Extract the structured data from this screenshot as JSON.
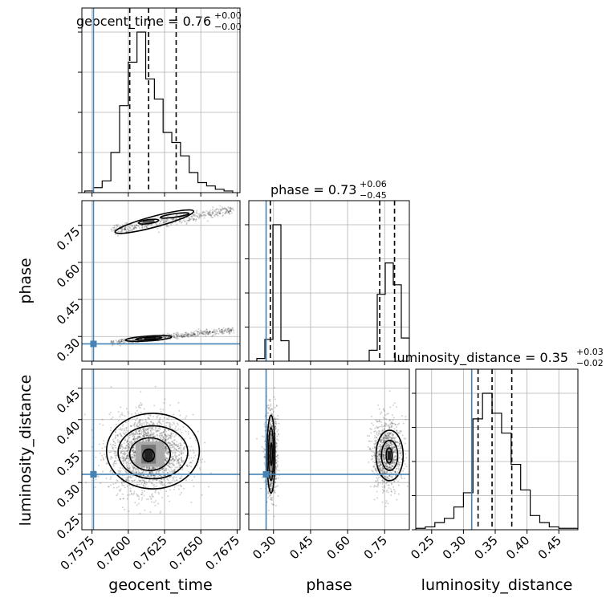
{
  "chart_data": {
    "type": "corner",
    "parameters": [
      {
        "name": "geocent_time",
        "label": "geocent_time",
        "title": "geocent_time = 0.76",
        "title_upper": "+0.00",
        "title_lower": "−0.00",
        "range": [
          0.7568,
          0.7677
        ],
        "ticks": [
          0.7575,
          0.76,
          0.7625,
          0.765,
          0.7675
        ],
        "tick_labels": [
          "0.7575",
          "0.7600",
          "0.7625",
          "0.7650",
          "0.7675"
        ],
        "truth": 0.7576,
        "quantiles": [
          0.7601,
          0.7614,
          0.7633
        ],
        "hist": {
          "edges": [
            0.757,
            0.7576,
            0.7582,
            0.7588,
            0.7594,
            0.76,
            0.7606,
            0.7612,
            0.7618,
            0.7624,
            0.763,
            0.7636,
            0.7642,
            0.7648,
            0.7654,
            0.766,
            0.7666,
            0.7672
          ],
          "counts": [
            1,
            3,
            7,
            24,
            52,
            78,
            96,
            68,
            56,
            36,
            30,
            22,
            12,
            6,
            4,
            2,
            1
          ]
        }
      },
      {
        "name": "phase",
        "label": "phase",
        "title": "phase = 0.73",
        "title_upper": "+0.06",
        "title_lower": "−0.45",
        "range": [
          0.2,
          0.85
        ],
        "ticks": [
          0.3,
          0.45,
          0.6,
          0.75
        ],
        "tick_labels": [
          "0.30",
          "0.45",
          "0.60",
          "0.75"
        ],
        "truth": 0.27,
        "quantiles": [
          0.287,
          0.73,
          0.79
        ],
        "hist": {
          "edges": [
            0.2,
            0.2325,
            0.265,
            0.2975,
            0.33,
            0.3625,
            0.395,
            0.4275,
            0.46,
            0.4925,
            0.525,
            0.5575,
            0.59,
            0.6225,
            0.655,
            0.6875,
            0.72,
            0.7525,
            0.785,
            0.8175,
            0.85
          ],
          "counts": [
            0,
            2,
            16,
            100,
            15,
            0,
            0,
            0,
            0,
            0,
            0,
            0,
            0,
            0,
            0,
            8,
            49,
            72,
            56,
            17
          ]
        }
      },
      {
        "name": "luminosity_distance",
        "label": "luminosity_distance",
        "title": "luminosity_distance = 0.35",
        "title_upper": "+0.03",
        "title_lower": "−0.02",
        "range": [
          0.225,
          0.48
        ],
        "ticks": [
          0.25,
          0.3,
          0.35,
          0.4,
          0.45
        ],
        "tick_labels": [
          "0.25",
          "0.30",
          "0.35",
          "0.40",
          "0.45"
        ],
        "truth": 0.313,
        "quantiles": [
          0.323,
          0.345,
          0.376
        ],
        "hist": {
          "edges": [
            0.225,
            0.24,
            0.255,
            0.27,
            0.285,
            0.3,
            0.315,
            0.33,
            0.345,
            0.36,
            0.375,
            0.39,
            0.405,
            0.42,
            0.435,
            0.45,
            0.465,
            0.48
          ],
          "counts": [
            1,
            2,
            5,
            8,
            16,
            26,
            78,
            96,
            82,
            68,
            46,
            28,
            10,
            5,
            2,
            1,
            1
          ]
        }
      }
    ],
    "grid": true,
    "truth_color": "#4682b4",
    "hist_color": "#000000",
    "scatter_color": "#000000"
  }
}
